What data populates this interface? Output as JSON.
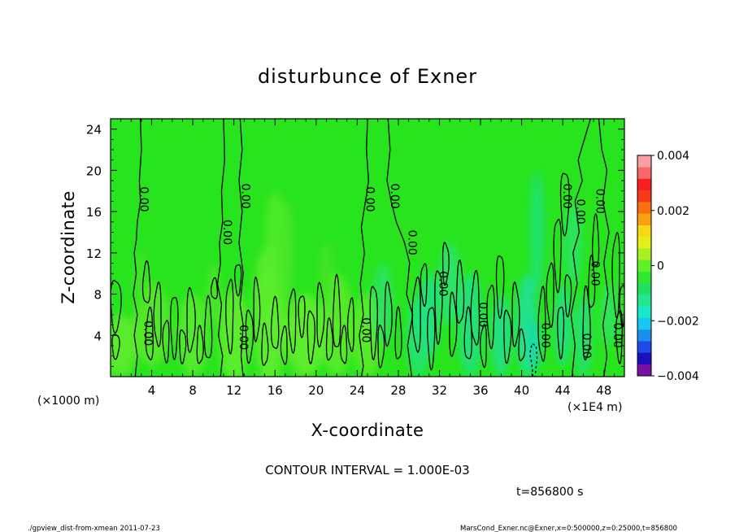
{
  "chart_data": {
    "type": "heatmap",
    "title": "disturbunce of Exner",
    "xlabel": "X-coordinate",
    "ylabel": "Z-coordinate",
    "x_unit": "(×1E4 m)",
    "y_unit": "(×1000 m)",
    "xlim": [
      0,
      50
    ],
    "ylim": [
      0,
      25
    ],
    "x_ticks": [
      "4",
      "8",
      "12",
      "16",
      "20",
      "24",
      "28",
      "32",
      "36",
      "40",
      "44",
      "48"
    ],
    "x_tick_values": [
      4,
      8,
      12,
      16,
      20,
      24,
      28,
      32,
      36,
      40,
      44,
      48
    ],
    "y_ticks": [
      "4",
      "8",
      "12",
      "16",
      "20",
      "24"
    ],
    "y_tick_values": [
      4,
      8,
      12,
      16,
      20,
      24
    ],
    "colorbar": {
      "range": [
        -0.004,
        0.004
      ],
      "labels": [
        "0.004",
        "0.002",
        "0",
        "−0.002",
        "−0.004"
      ],
      "label_values": [
        0.004,
        0.002,
        0,
        -0.002,
        -0.004
      ],
      "colors": [
        "#7a10a8",
        "#1a10c0",
        "#2048e8",
        "#1890f0",
        "#18c8f0",
        "#18e8c8",
        "#20e890",
        "#20e060",
        "#30e830",
        "#60f028",
        "#a8f020",
        "#e0f018",
        "#f8d810",
        "#f8a010",
        "#f87010",
        "#f83818",
        "#f82020",
        "#f86868",
        "#f8a0a0"
      ]
    },
    "contour_label": "0.00",
    "contour_interval_text": "CONTOUR INTERVAL = 1.000E-03",
    "contour_levels": [
      -0.001,
      0,
      0.001
    ]
  },
  "footer": {
    "time_text": "t=856800 s",
    "left_text": "./gpview_dist-from-xmean  2011-07-23",
    "right_text": "MarsCond_Exner.nc@Exner,x=0:500000,z=0:25000,t=856800"
  }
}
